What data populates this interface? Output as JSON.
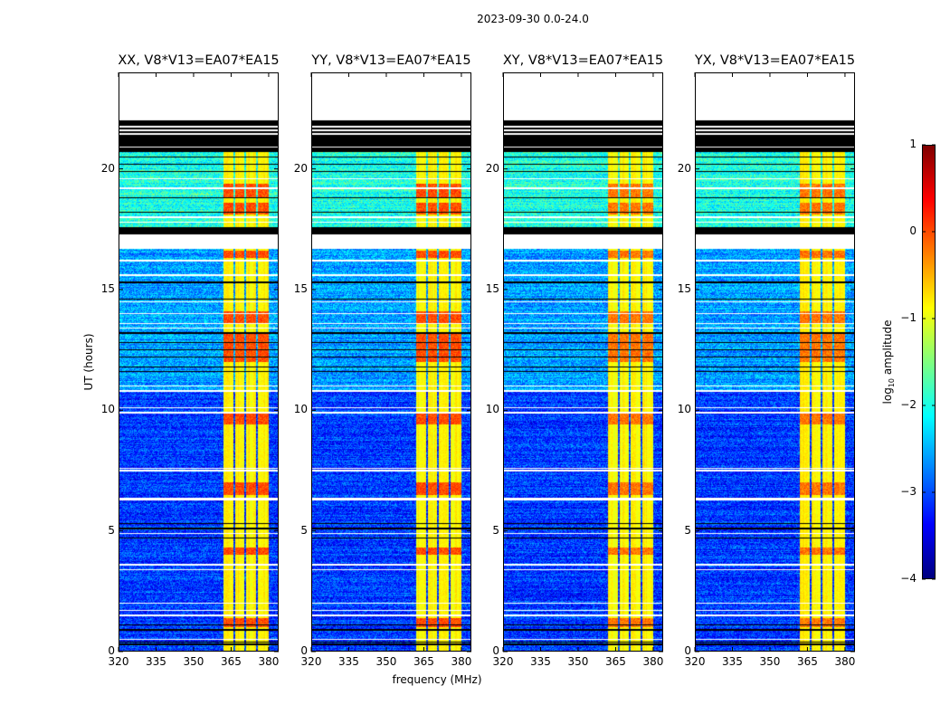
{
  "chart_data": {
    "type": "heatmap",
    "title": "2023-09-30 0.0-24.0",
    "panels": [
      {
        "title": "XX, V8*V13=EA07*EA15",
        "seed": 11
      },
      {
        "title": "YY, V8*V13=EA07*EA15",
        "seed": 23
      },
      {
        "title": "XY, V8*V13=EA07*EA15",
        "seed": 37
      },
      {
        "title": "YX, V8*V13=EA07*EA15",
        "seed": 51
      }
    ],
    "xlabel": "frequency (MHz)",
    "ylabel": "UT (hours)",
    "xlim": [
      320,
      384
    ],
    "ylim": [
      0,
      24
    ],
    "xticks": [
      320,
      335,
      350,
      365,
      380
    ],
    "yticks": [
      0,
      5,
      10,
      15,
      20
    ],
    "colorbar": {
      "label": "log",
      "label_sub": "10",
      "label_rest": " amplitude",
      "range": [
        -4,
        1
      ],
      "ticks": [
        "−4",
        "−3",
        "−2",
        "−1",
        "0",
        "1"
      ],
      "colormap": "jet"
    },
    "no_data_above_hours": 22.0,
    "blank_intervals_hours": [
      [
        16.7,
        17.3
      ]
    ],
    "flagged_intervals_hours": [
      [
        20.7,
        22.0
      ],
      [
        17.3,
        17.6
      ]
    ],
    "blank_lines_hours": [
      21.75,
      21.6,
      21.45,
      20.9,
      19.6,
      19.2,
      18.0,
      17.8,
      16.2,
      15.6,
      14.5,
      14.0,
      13.6,
      13.4,
      11.0,
      10.8,
      10.1,
      9.9,
      7.6,
      7.5,
      6.35,
      6.3,
      4.9,
      3.6,
      3.4,
      2.0,
      1.7,
      1.5,
      0.5
    ],
    "flagged_lines_hours": [
      20.5,
      20.2,
      19.9,
      18.8,
      18.2,
      15.3,
      14.6,
      13.2,
      12.8,
      12.5,
      12.2,
      11.8,
      11.6,
      5.3,
      5.1,
      4.7,
      1.1,
      0.9,
      0.4,
      0.3
    ],
    "rfi_band_mhz": [
      362,
      380
    ],
    "rfi_band_gaps_mhz": [
      366.3,
      370.7,
      375.2
    ],
    "rfi_level_log10": -1.0,
    "bright_intervals_hours": [
      [
        18.1,
        18.6
      ],
      [
        18.8,
        19.4
      ],
      [
        12.0,
        13.2
      ],
      [
        9.4,
        9.9
      ],
      [
        6.5,
        7.0
      ],
      [
        4.0,
        4.3
      ],
      [
        1.0,
        1.4
      ],
      [
        16.3,
        16.6
      ],
      [
        13.6,
        14.1
      ]
    ],
    "bright_level_log10": 0.0,
    "background_levels_log10": [
      {
        "from_hours": 0,
        "to_hours": 10.8,
        "level": -3.1
      },
      {
        "from_hours": 10.8,
        "to_hours": 17.6,
        "level": -2.6
      },
      {
        "from_hours": 17.6,
        "to_hours": 24,
        "level": -2.0
      }
    ]
  }
}
